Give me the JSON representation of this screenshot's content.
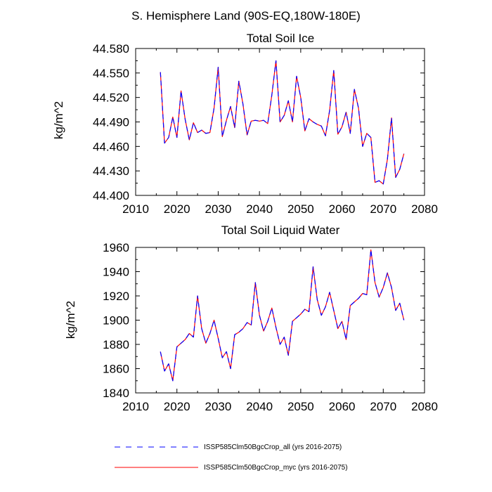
{
  "figure": {
    "title": "S. Hemisphere Land (90S-EQ,180W-180E)"
  },
  "legend": {
    "placement": "bottom",
    "entries": [
      {
        "label": "ISSP585Clm50BgcCrop_all (yrs 2016-2075)",
        "color": "#0000ff",
        "style": "dashed"
      },
      {
        "label": "ISSP585Clm50BgcCrop_myc (yrs 2016-2075)",
        "color": "#ff0000",
        "style": "solid"
      }
    ]
  },
  "chart_data": [
    {
      "type": "line",
      "title": "Total Soil Ice",
      "xlabel": "",
      "ylabel": "kg/m^2",
      "xlim": [
        2010,
        2080
      ],
      "ylim": [
        44.4,
        44.58
      ],
      "xticks": [
        "2010",
        "2020",
        "2030",
        "2040",
        "2050",
        "2060",
        "2070",
        "2080"
      ],
      "yticks": [
        "44.400",
        "44.430",
        "44.460",
        "44.490",
        "44.520",
        "44.550",
        "44.580"
      ],
      "x": [
        2016,
        2017,
        2018,
        2019,
        2020,
        2021,
        2022,
        2023,
        2024,
        2025,
        2026,
        2027,
        2028,
        2029,
        2030,
        2031,
        2032,
        2033,
        2034,
        2035,
        2036,
        2037,
        2038,
        2039,
        2040,
        2041,
        2042,
        2043,
        2044,
        2045,
        2046,
        2047,
        2048,
        2049,
        2050,
        2051,
        2052,
        2053,
        2054,
        2055,
        2056,
        2057,
        2058,
        2059,
        2060,
        2061,
        2062,
        2063,
        2064,
        2065,
        2066,
        2067,
        2068,
        2069,
        2070,
        2071,
        2072,
        2073,
        2074,
        2075
      ],
      "series": [
        {
          "name": "ISSP585Clm50BgcCrop_all (yrs 2016-2075)",
          "color": "#0000ff",
          "style": "dashed",
          "values": [
            44.551,
            44.464,
            44.471,
            44.496,
            44.471,
            44.528,
            44.493,
            44.468,
            44.489,
            44.477,
            44.48,
            44.476,
            44.477,
            44.507,
            44.557,
            44.472,
            44.492,
            44.509,
            44.483,
            44.54,
            44.512,
            44.474,
            44.491,
            44.492,
            44.491,
            44.492,
            44.488,
            44.523,
            44.565,
            44.49,
            44.498,
            44.516,
            44.49,
            44.546,
            44.52,
            44.479,
            44.494,
            44.49,
            44.487,
            44.485,
            44.473,
            44.504,
            44.553,
            44.475,
            44.484,
            44.502,
            44.476,
            44.53,
            44.507,
            44.46,
            44.476,
            44.471,
            44.416,
            44.418,
            44.414,
            44.444,
            44.495,
            44.422,
            44.432,
            44.451
          ]
        },
        {
          "name": "ISSP585Clm50BgcCrop_myc (yrs 2016-2075)",
          "color": "#ff0000",
          "style": "solid",
          "values": [
            44.551,
            44.464,
            44.471,
            44.496,
            44.471,
            44.528,
            44.493,
            44.468,
            44.489,
            44.477,
            44.48,
            44.476,
            44.477,
            44.507,
            44.557,
            44.472,
            44.492,
            44.509,
            44.483,
            44.54,
            44.512,
            44.474,
            44.491,
            44.492,
            44.491,
            44.492,
            44.488,
            44.523,
            44.565,
            44.49,
            44.498,
            44.516,
            44.49,
            44.546,
            44.52,
            44.479,
            44.494,
            44.49,
            44.487,
            44.485,
            44.473,
            44.504,
            44.553,
            44.475,
            44.484,
            44.502,
            44.476,
            44.53,
            44.507,
            44.46,
            44.476,
            44.471,
            44.416,
            44.418,
            44.414,
            44.444,
            44.495,
            44.422,
            44.432,
            44.451
          ]
        }
      ]
    },
    {
      "type": "line",
      "title": "Total Soil Liquid Water",
      "xlabel": "",
      "ylabel": "kg/m^2",
      "xlim": [
        2010,
        2080
      ],
      "ylim": [
        1840,
        1960
      ],
      "xticks": [
        "2010",
        "2020",
        "2030",
        "2040",
        "2050",
        "2060",
        "2070",
        "2080"
      ],
      "yticks": [
        "1840",
        "1860",
        "1880",
        "1900",
        "1920",
        "1940",
        "1960"
      ],
      "x": [
        2016,
        2017,
        2018,
        2019,
        2020,
        2021,
        2022,
        2023,
        2024,
        2025,
        2026,
        2027,
        2028,
        2029,
        2030,
        2031,
        2032,
        2033,
        2034,
        2035,
        2036,
        2037,
        2038,
        2039,
        2040,
        2041,
        2042,
        2043,
        2044,
        2045,
        2046,
        2047,
        2048,
        2049,
        2050,
        2051,
        2052,
        2053,
        2054,
        2055,
        2056,
        2057,
        2058,
        2059,
        2060,
        2061,
        2062,
        2063,
        2064,
        2065,
        2066,
        2067,
        2068,
        2069,
        2070,
        2071,
        2072,
        2073,
        2074,
        2075
      ],
      "series": [
        {
          "name": "ISSP585Clm50BgcCrop_all (yrs 2016-2075)",
          "color": "#0000ff",
          "style": "dashed",
          "values": [
            1874,
            1858,
            1864,
            1850,
            1878,
            1881,
            1884,
            1889,
            1886,
            1920,
            1893,
            1881,
            1889,
            1900,
            1885,
            1869,
            1874,
            1860,
            1888,
            1890,
            1893,
            1898,
            1896,
            1931,
            1904,
            1891,
            1899,
            1910,
            1894,
            1880,
            1886,
            1871,
            1899,
            1902,
            1905,
            1909,
            1907,
            1944,
            1917,
            1904,
            1911,
            1923,
            1908,
            1893,
            1899,
            1884,
            1912,
            1915,
            1918,
            1922,
            1921,
            1958,
            1931,
            1919,
            1927,
            1939,
            1927,
            1908,
            1914,
            1900
          ]
        },
        {
          "name": "ISSP585Clm50BgcCrop_myc (yrs 2016-2075)",
          "color": "#ff0000",
          "style": "solid",
          "values": [
            1874,
            1858,
            1864,
            1850,
            1878,
            1881,
            1884,
            1889,
            1886,
            1920,
            1893,
            1881,
            1889,
            1900,
            1885,
            1869,
            1874,
            1860,
            1888,
            1890,
            1893,
            1898,
            1896,
            1931,
            1904,
            1891,
            1899,
            1910,
            1894,
            1880,
            1886,
            1871,
            1899,
            1902,
            1905,
            1909,
            1907,
            1944,
            1917,
            1904,
            1911,
            1923,
            1908,
            1893,
            1899,
            1884,
            1912,
            1915,
            1918,
            1922,
            1921,
            1958,
            1931,
            1919,
            1927,
            1939,
            1927,
            1908,
            1914,
            1900
          ]
        }
      ]
    }
  ]
}
